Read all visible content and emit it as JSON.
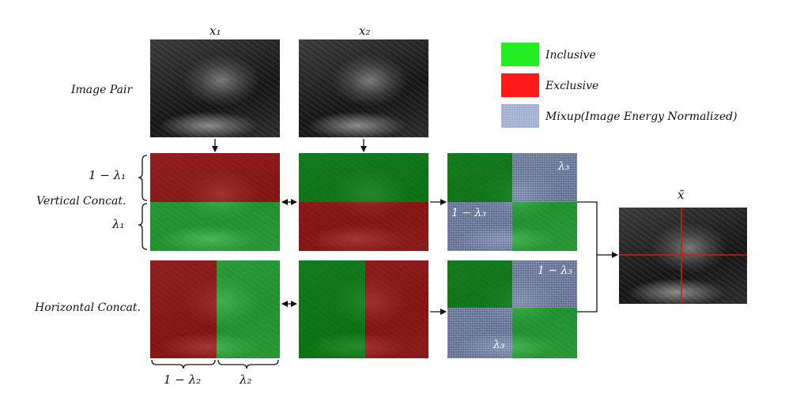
{
  "top_labels": {
    "x1": "x₁",
    "x2": "x₂",
    "xtilde": "x̃"
  },
  "row_labels": {
    "image_pair": "Image Pair",
    "vertical": "Vertical Concat.",
    "horizontal": "Horizontal Concat."
  },
  "legend": [
    {
      "label": "Inclusive",
      "color": "#22ee22"
    },
    {
      "label": "Exclusive",
      "color": "#ff1a1a"
    },
    {
      "label": "Mixup(Image Energy Normalized)",
      "color": "#b8c4dc"
    }
  ],
  "lambda_labels": {
    "v_top": "1 − λ₁",
    "v_bottom": "λ₁",
    "h_left": "1 − λ₂",
    "h_right": "λ₂",
    "mix_v_top": "λ₃",
    "mix_v_bottom": "1 − λ₃",
    "mix_h_top": "1 − λ₃",
    "mix_h_bottom": "λ₃"
  },
  "colors": {
    "inclusive": "#22ee22",
    "exclusive": "#ff1a1a",
    "mixup": "#b8c4dc",
    "crosshair": "#d11a1a"
  }
}
